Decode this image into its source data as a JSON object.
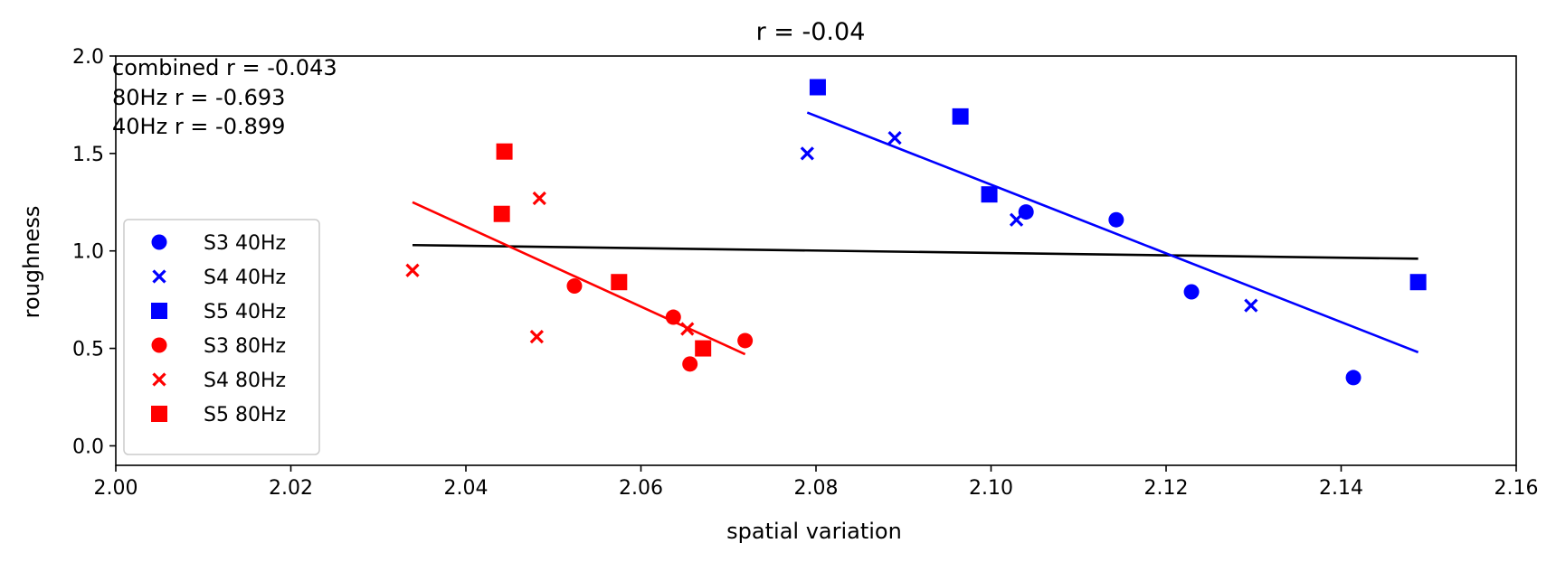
{
  "chart_data": {
    "type": "scatter",
    "title": "r = -0.04",
    "xlabel": "spatial variation",
    "ylabel": "roughness",
    "xlim": [
      2.0,
      2.16
    ],
    "ylim": [
      -0.1,
      2.0
    ],
    "xticks": [
      2.0,
      2.02,
      2.04,
      2.06,
      2.08,
      2.1,
      2.12,
      2.14,
      2.16
    ],
    "xtick_labels": [
      "2.00",
      "2.02",
      "2.04",
      "2.06",
      "2.08",
      "2.10",
      "2.12",
      "2.14",
      "2.16"
    ],
    "yticks": [
      0.0,
      0.5,
      1.0,
      1.5,
      2.0
    ],
    "ytick_labels": [
      "0.0",
      "0.5",
      "1.0",
      "1.5",
      "2.0"
    ],
    "grid": false,
    "legend_position": "center-left",
    "annotations": [
      "combined r = -0.043",
      "80Hz r = -0.693",
      "40Hz r = -0.899"
    ],
    "series": [
      {
        "name": "S3 40Hz",
        "marker": "circle",
        "color": "#0000ff",
        "points": [
          [
            2.104,
            1.2
          ],
          [
            2.1143,
            1.16
          ],
          [
            2.1229,
            0.79
          ],
          [
            2.1414,
            0.35
          ]
        ]
      },
      {
        "name": "S4 40Hz",
        "marker": "x",
        "color": "#0000ff",
        "points": [
          [
            2.079,
            1.5
          ],
          [
            2.089,
            1.58
          ],
          [
            2.1029,
            1.16
          ],
          [
            2.1297,
            0.72
          ]
        ]
      },
      {
        "name": "S5 40Hz",
        "marker": "square",
        "color": "#0000ff",
        "points": [
          [
            2.0802,
            1.84
          ],
          [
            2.0965,
            1.69
          ],
          [
            2.0998,
            1.29
          ],
          [
            2.1488,
            0.84
          ]
        ]
      },
      {
        "name": "S3 80Hz",
        "marker": "circle",
        "color": "#ff0000",
        "points": [
          [
            2.0524,
            0.82
          ],
          [
            2.0637,
            0.66
          ],
          [
            2.0656,
            0.42
          ],
          [
            2.0719,
            0.54
          ]
        ]
      },
      {
        "name": "S4 80Hz",
        "marker": "x",
        "color": "#ff0000",
        "points": [
          [
            2.0339,
            0.9
          ],
          [
            2.0484,
            1.27
          ],
          [
            2.0481,
            0.56
          ],
          [
            2.0653,
            0.6
          ]
        ]
      },
      {
        "name": "S5 80Hz",
        "marker": "square",
        "color": "#ff0000",
        "points": [
          [
            2.0444,
            1.51
          ],
          [
            2.0441,
            1.19
          ],
          [
            2.0575,
            0.84
          ],
          [
            2.0671,
            0.5
          ]
        ]
      }
    ],
    "fit_lines": [
      {
        "color": "#000000",
        "points": [
          [
            2.0339,
            1.03
          ],
          [
            2.1488,
            0.96
          ]
        ]
      },
      {
        "color": "#ff0000",
        "points": [
          [
            2.0339,
            1.25
          ],
          [
            2.0719,
            0.47
          ]
        ]
      },
      {
        "color": "#0000ff",
        "points": [
          [
            2.079,
            1.71
          ],
          [
            2.1488,
            0.48
          ]
        ]
      }
    ]
  }
}
